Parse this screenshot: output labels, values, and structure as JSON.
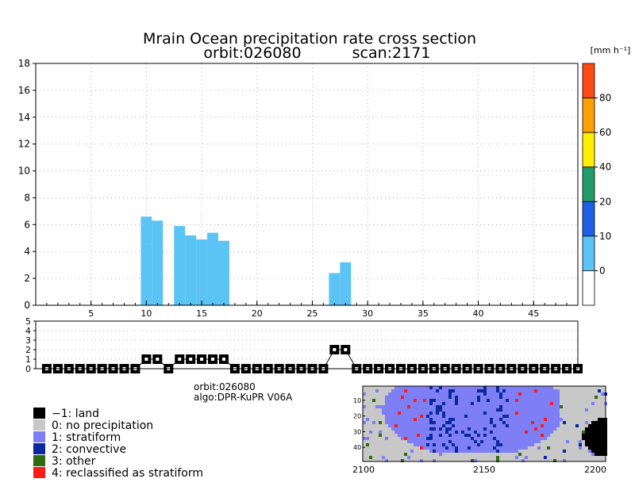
{
  "title_line1": "Mrain Ocean precipitation rate cross section",
  "title_line2_orbit": "orbit:026080",
  "title_line2_scan": "scan:2171",
  "colorbar": {
    "unit_label": "[mm h⁻¹]",
    "ticks": [
      "0",
      "10",
      "20",
      "40",
      "60",
      "80"
    ],
    "colors": [
      "#ffffff",
      "#5bc4f5",
      "#1f5fe6",
      "#1f9c6a",
      "#ffee00",
      "#ffa000",
      "#ff4a14"
    ]
  },
  "chart_data": [
    {
      "type": "bar",
      "title": "Mrain Ocean precipitation rate cross section",
      "xlim": [
        0,
        49
      ],
      "ylim": [
        0,
        18
      ],
      "x_ticks": [
        5,
        10,
        15,
        20,
        25,
        30,
        35,
        40,
        45
      ],
      "y_ticks": [
        0,
        2,
        4,
        6,
        8,
        10,
        12,
        14,
        16,
        18
      ],
      "grid": true,
      "series": [
        {
          "color": "#5bc4f5",
          "columns": [
            {
              "x": 10,
              "bottom": 0.0,
              "top": 4.6
            },
            {
              "x": 10,
              "bottom": 4.6,
              "top": 6.6
            },
            {
              "x": 11,
              "bottom": 0.0,
              "top": 6.3
            },
            {
              "x": 13,
              "bottom": 0.0,
              "top": 5.9
            },
            {
              "x": 14,
              "bottom": 0.0,
              "top": 5.2
            },
            {
              "x": 15,
              "bottom": 0.0,
              "top": 4.9
            },
            {
              "x": 16,
              "bottom": 0.0,
              "top": 5.4
            },
            {
              "x": 17,
              "bottom": 0.0,
              "top": 4.8
            },
            {
              "x": 27,
              "bottom": 0.0,
              "top": 2.4
            },
            {
              "x": 28,
              "bottom": 0.0,
              "top": 3.2
            }
          ]
        }
      ]
    },
    {
      "type": "line",
      "ylim": [
        0,
        5
      ],
      "y_ticks": [
        0,
        1,
        2,
        3,
        4,
        5
      ],
      "grid": true,
      "series": [
        {
          "x": [
            1,
            2,
            3,
            4,
            5,
            6,
            7,
            8,
            9,
            10,
            11,
            12,
            13,
            14,
            15,
            16,
            17,
            18,
            19,
            20,
            21,
            22,
            23,
            24,
            25,
            26,
            27,
            28,
            29,
            30,
            31,
            32,
            33,
            34,
            35,
            36,
            37,
            38,
            39,
            40,
            41,
            42,
            43,
            44,
            45,
            46,
            47,
            48,
            49
          ],
          "values": [
            0,
            0,
            0,
            0,
            0,
            0,
            0,
            0,
            0,
            1,
            1,
            0,
            1,
            1,
            1,
            1,
            1,
            0,
            0,
            0,
            0,
            0,
            0,
            0,
            0,
            0,
            2,
            2,
            0,
            0,
            0,
            0,
            0,
            0,
            0,
            0,
            0,
            0,
            0,
            0,
            0,
            0,
            0,
            0,
            0,
            0,
            0,
            0,
            0
          ]
        }
      ]
    },
    {
      "type": "heatmap",
      "x_ticks": [
        2100,
        2150,
        2200
      ],
      "y_ticks": [
        10,
        20,
        30,
        40
      ],
      "xlim": [
        2100,
        2200
      ],
      "ylim": [
        1,
        49
      ]
    }
  ],
  "info": {
    "orbit": "orbit:026080",
    "algo": "algo:DPR-KuPR V06A"
  },
  "legend": [
    {
      "label": "−1: land",
      "color": "#000000"
    },
    {
      "label": "0: no precipitation",
      "color": "#c8c8c8"
    },
    {
      "label": "1: stratiform",
      "color": "#7f7ff5"
    },
    {
      "label": "2: convective",
      "color": "#0a2a9c"
    },
    {
      "label": "3: other",
      "color": "#2f6b12"
    },
    {
      "label": "4: reclassified as stratiform",
      "color": "#ff1a1a"
    }
  ]
}
